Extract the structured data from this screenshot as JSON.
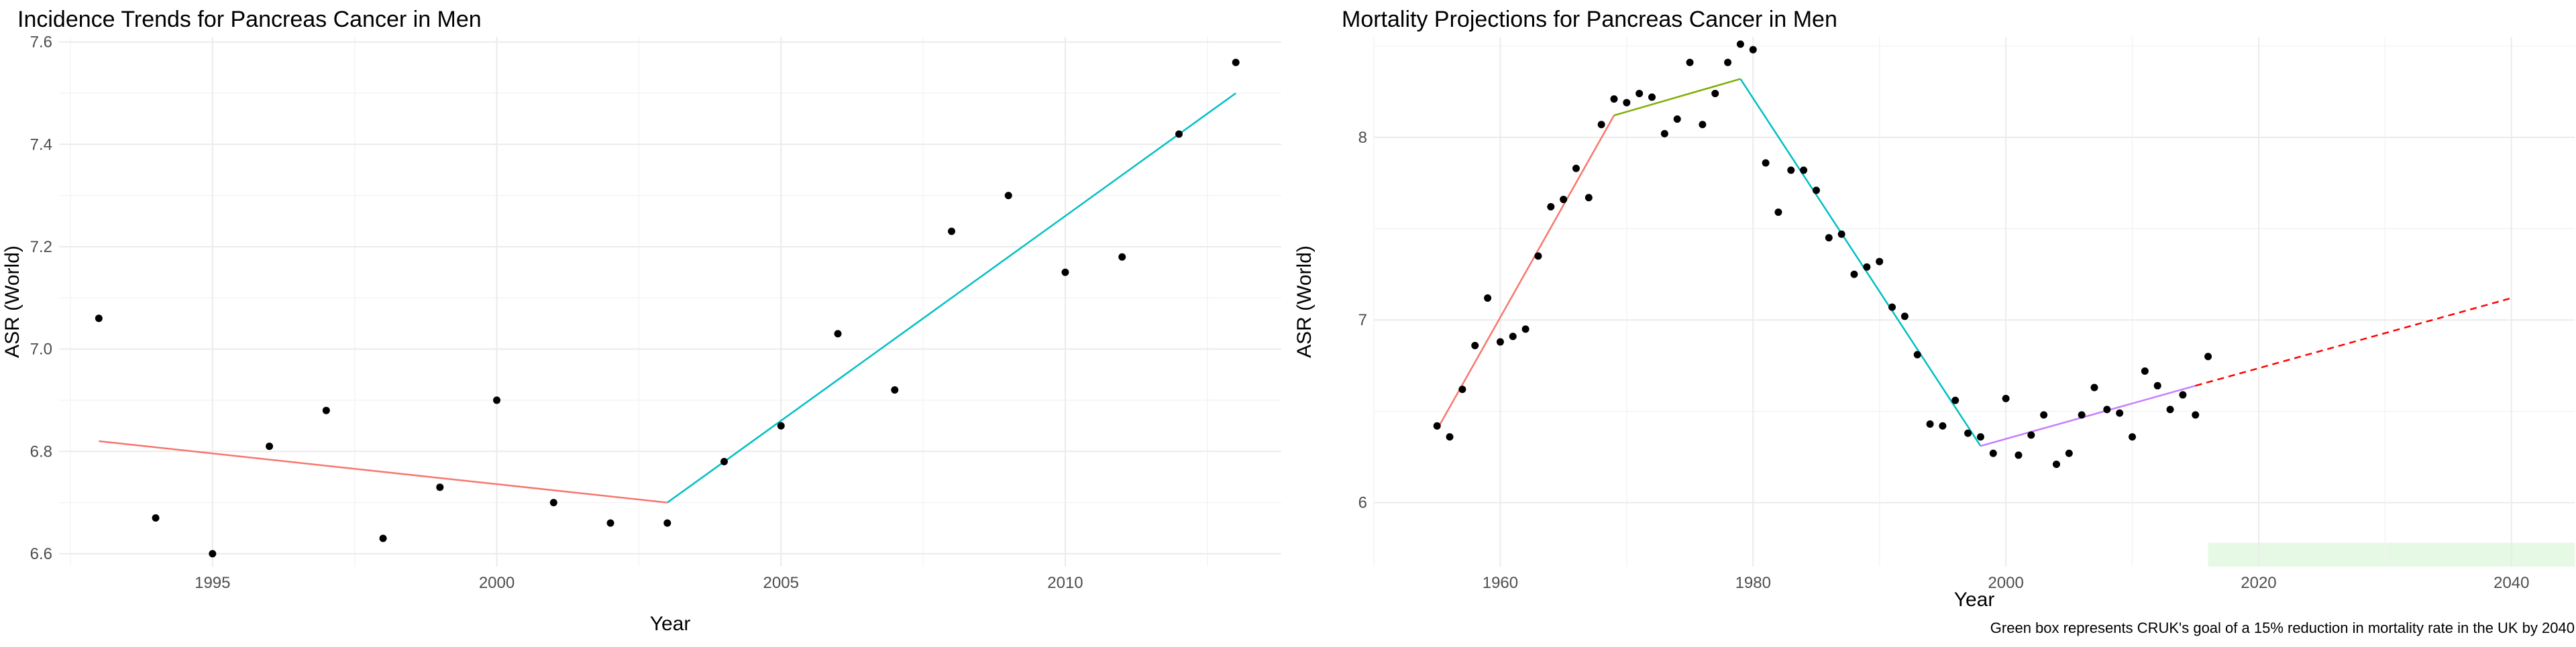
{
  "colors": {
    "grid_major": "#ebebeb",
    "grid_minor": "#f4f4f4",
    "point": "#000000",
    "segment_1": "#F8766D",
    "segment_2": "#7CAE00",
    "segment_3": "#00BFC4",
    "segment_4": "#C77CFF",
    "projection": "#FF0000",
    "goal_box": "#E5F9E5"
  },
  "caption": "Green box represents CRUK's goal of a 15% reduction in mortality rate in the UK by 2040",
  "chart_data": [
    {
      "type": "scatter",
      "title": "Incidence Trends for Pancreas Cancer in Men",
      "xlabel": "Year",
      "ylabel": "ASR (World)",
      "xlim": [
        1992.3,
        2013.8
      ],
      "ylim": [
        6.575,
        7.61
      ],
      "grid": true,
      "x_ticks": [
        1995,
        2000,
        2005,
        2010
      ],
      "y_ticks": [
        6.6,
        6.8,
        7.0,
        7.2,
        7.4,
        7.6
      ],
      "x_tick_labels": [
        "1995",
        "2000",
        "2005",
        "2010"
      ],
      "y_tick_labels": [
        "6.6",
        "6.8",
        "7.0",
        "7.2",
        "7.4",
        "7.6"
      ],
      "points": {
        "x": [
          1993,
          1994,
          1995,
          1996,
          1997,
          1998,
          1999,
          2000,
          2001,
          2002,
          2003,
          2004,
          2005,
          2006,
          2007,
          2008,
          2009,
          2010,
          2011,
          2012,
          2013
        ],
        "y": [
          7.06,
          6.67,
          6.6,
          6.81,
          6.88,
          6.63,
          6.73,
          6.9,
          6.7,
          6.66,
          6.66,
          6.78,
          6.85,
          7.03,
          6.92,
          7.23,
          7.3,
          7.15,
          7.18,
          7.42,
          7.56
        ]
      },
      "trend_segments": [
        {
          "color_key": "segment_1",
          "x": [
            1993,
            2003
          ],
          "y": [
            6.82,
            6.7
          ]
        },
        {
          "color_key": "segment_3",
          "x": [
            2003,
            2013
          ],
          "y": [
            6.7,
            7.5
          ]
        }
      ]
    },
    {
      "type": "scatter",
      "title": "Mortality Projections for Pancreas Cancer in Men",
      "xlabel": "Year",
      "ylabel": "ASR (World)",
      "xlim": [
        1950,
        2045
      ],
      "ylim": [
        5.65,
        8.55
      ],
      "grid": true,
      "x_ticks": [
        1960,
        1980,
        2000,
        2020,
        2040
      ],
      "y_ticks": [
        6,
        7,
        8
      ],
      "x_tick_labels": [
        "1960",
        "1980",
        "2000",
        "2020",
        "2040"
      ],
      "y_tick_labels": [
        "6",
        "7",
        "8"
      ],
      "points": {
        "x": [
          1955,
          1956,
          1957,
          1958,
          1959,
          1960,
          1961,
          1962,
          1963,
          1964,
          1965,
          1966,
          1967,
          1968,
          1969,
          1970,
          1971,
          1972,
          1973,
          1974,
          1975,
          1976,
          1977,
          1978,
          1979,
          1980,
          1981,
          1982,
          1983,
          1984,
          1985,
          1986,
          1987,
          1988,
          1989,
          1990,
          1991,
          1992,
          1993,
          1994,
          1995,
          1996,
          1997,
          1998,
          1999,
          2000,
          2001,
          2002,
          2003,
          2004,
          2005,
          2006,
          2007,
          2008,
          2009,
          2010,
          2011,
          2012,
          2013,
          2014,
          2015,
          2016
        ],
        "y": [
          6.42,
          6.36,
          6.62,
          6.86,
          7.12,
          6.88,
          6.91,
          6.95,
          7.35,
          7.62,
          7.66,
          7.83,
          7.67,
          8.07,
          8.21,
          8.19,
          8.24,
          8.22,
          8.02,
          8.1,
          8.41,
          8.07,
          8.24,
          8.41,
          8.51,
          8.48,
          7.86,
          7.59,
          7.82,
          7.82,
          7.71,
          7.45,
          7.47,
          7.25,
          7.29,
          7.32,
          7.07,
          7.02,
          6.81,
          6.43,
          6.42,
          6.56,
          6.38,
          6.36,
          6.27,
          6.57,
          6.26,
          6.37,
          6.48,
          6.21,
          6.27,
          6.48,
          6.63,
          6.51,
          6.49,
          6.36,
          6.72,
          6.64,
          6.51,
          6.59,
          6.48,
          6.8
        ]
      },
      "trend_segments": [
        {
          "color_key": "segment_1",
          "x": [
            1955,
            1969
          ],
          "y": [
            6.4,
            8.12
          ]
        },
        {
          "color_key": "segment_2",
          "x": [
            1969,
            1979
          ],
          "y": [
            8.12,
            8.32
          ]
        },
        {
          "color_key": "segment_3",
          "x": [
            1979,
            1998
          ],
          "y": [
            8.32,
            6.31
          ]
        },
        {
          "color_key": "segment_4",
          "x": [
            1998,
            2015
          ],
          "y": [
            6.31,
            6.64
          ]
        }
      ],
      "projection": {
        "color_key": "projection",
        "dashed": true,
        "x": [
          2015,
          2040
        ],
        "y": [
          6.64,
          7.12
        ]
      },
      "goal_box": {
        "color_key": "goal_box",
        "x": [
          2016,
          2045
        ],
        "y": [
          5.65,
          5.78
        ]
      }
    }
  ]
}
